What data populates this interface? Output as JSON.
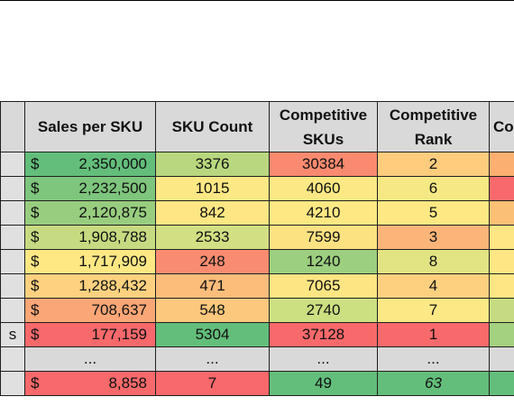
{
  "headers": {
    "col0": "",
    "sales": "Sales per SKU",
    "sku_count": "SKU Count",
    "competitive_skus": "Competitive SKUs",
    "competitive_rank": "Competitive Rank",
    "next_partial": "Co"
  },
  "rows": [
    {
      "label": "",
      "currency": "$",
      "sales": "2,350,000",
      "sku_count": "3376",
      "competitive_skus": "30384",
      "competitive_rank": "2",
      "colors": {
        "label": "#e0e0e0",
        "sales": "#63be7b",
        "sku_count": "#b8d77e",
        "competitive_skus": "#f98a6f",
        "competitive_rank": "#fdcc7d",
        "next": "#fbb071"
      }
    },
    {
      "label": "",
      "currency": "$",
      "sales": "2,232,500",
      "sku_count": "1015",
      "competitive_skus": "4060",
      "competitive_rank": "6",
      "colors": {
        "label": "#e0e0e0",
        "sales": "#7ec57d",
        "sku_count": "#fce884",
        "competitive_skus": "#fce884",
        "competitive_rank": "#f6e884",
        "next": "#f8696b"
      }
    },
    {
      "label": "",
      "currency": "$",
      "sales": "2,120,875",
      "sku_count": "842",
      "competitive_skus": "4210",
      "competitive_rank": "5",
      "colors": {
        "label": "#e0e0e0",
        "sales": "#98cd7f",
        "sku_count": "#fde683",
        "competitive_skus": "#fde884",
        "competitive_rank": "#fde884",
        "next": "#fbbf76"
      }
    },
    {
      "label": "",
      "currency": "$",
      "sales": "1,908,788",
      "sku_count": "2533",
      "competitive_skus": "7599",
      "competitive_rank": "3",
      "colors": {
        "label": "#e0e0e0",
        "sales": "#c6db81",
        "sku_count": "#d2df82",
        "competitive_skus": "#fde282",
        "competitive_rank": "#fcb578",
        "next": "#fde683"
      }
    },
    {
      "label": "",
      "currency": "$",
      "sales": "1,717,909",
      "sku_count": "248",
      "competitive_skus": "1240",
      "competitive_rank": "8",
      "colors": {
        "label": "#e0e0e0",
        "sales": "#fde884",
        "sku_count": "#f98c70",
        "competitive_skus": "#9ccf7f",
        "competitive_rank": "#e2e383",
        "next": "#fde683"
      }
    },
    {
      "label": "",
      "currency": "$",
      "sales": "1,288,432",
      "sku_count": "471",
      "competitive_skus": "7065",
      "competitive_rank": "4",
      "colors": {
        "label": "#e0e0e0",
        "sales": "#fdd17f",
        "sku_count": "#fcbd7b",
        "competitive_skus": "#fde583",
        "competitive_rank": "#fdd080",
        "next": "#fde683"
      }
    },
    {
      "label": "",
      "currency": "$",
      "sales": "708,637",
      "sku_count": "548",
      "competitive_skus": "2740",
      "competitive_rank": "7",
      "colors": {
        "label": "#e0e0e0",
        "sales": "#fba676",
        "sku_count": "#fcc87d",
        "competitive_skus": "#cce081",
        "competitive_rank": "#fce884",
        "next": "#c6db81"
      }
    },
    {
      "label": "s",
      "currency": "$",
      "sales": "177,159",
      "sku_count": "5304",
      "competitive_skus": "37128",
      "competitive_rank": "1",
      "colors": {
        "label": "#e0e0e0",
        "sales": "#f8696b",
        "sku_count": "#63be7b",
        "competitive_skus": "#f8696b",
        "competitive_rank": "#f8696b",
        "next": "#a3d17f"
      }
    },
    {
      "label": "",
      "currency": "",
      "sales": "...",
      "sku_count": "...",
      "competitive_skus": "...",
      "competitive_rank": "...",
      "colors": {
        "label": "#e0e0e0",
        "sales": "#d9d9d9",
        "sku_count": "#d9d9d9",
        "competitive_skus": "#d9d9d9",
        "competitive_rank": "#d9d9d9",
        "next": "#d9d9d9"
      }
    },
    {
      "label": "",
      "currency": "$",
      "sales": "8,858",
      "sku_count": "7",
      "competitive_skus": "49",
      "competitive_rank": "63",
      "colors": {
        "label": "#e0e0e0",
        "sales": "#f8696b",
        "sku_count": "#f8696b",
        "competitive_skus": "#63be7b",
        "competitive_rank": "#63be7b",
        "next": "#63be7b"
      }
    }
  ]
}
